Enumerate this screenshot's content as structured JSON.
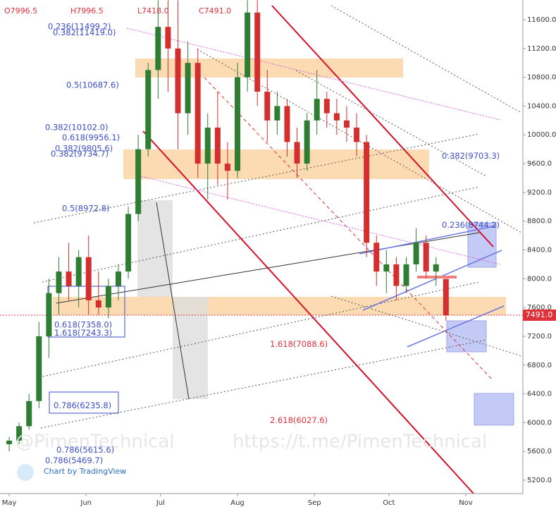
{
  "header": {
    "open": "O7996.5",
    "high": "H7996.5",
    "low": "L7418.0",
    "close": "C7491.0"
  },
  "last_price": "7491.0",
  "watermark_left": "@PimenTechnical",
  "watermark_right": "https://t.me/PimenTechnical",
  "branding": "Chart by TradingView",
  "chart_data": {
    "type": "candlestick",
    "x": [
      0,
      4,
      8,
      12,
      16,
      20,
      24,
      28,
      32,
      36,
      40,
      44,
      48,
      52,
      56,
      60,
      64,
      68,
      72,
      76,
      80,
      84,
      88,
      92,
      96,
      100,
      104,
      108,
      112,
      116,
      120,
      124,
      128,
      132,
      136,
      140,
      144,
      148,
      152,
      156,
      160,
      164,
      168,
      172,
      176
    ],
    "open": [
      5700,
      5750,
      5950,
      6300,
      7200,
      7800,
      8100,
      7900,
      8300,
      7700,
      7600,
      7900,
      8100,
      8900,
      9800,
      10900,
      11500,
      11200,
      10300,
      11000,
      9600,
      10100,
      9600,
      9500,
      10800,
      11700,
      10600,
      10200,
      10400,
      9900,
      9600,
      10200,
      10500,
      10300,
      10200,
      10100,
      9900,
      8500,
      8100,
      8200,
      7900,
      8200,
      8500,
      8100,
      7996.5
    ],
    "high": [
      5800,
      6000,
      6400,
      7400,
      8000,
      8300,
      8500,
      8400,
      8600,
      8100,
      8000,
      8200,
      9000,
      10000,
      11000,
      11870,
      11870,
      11870,
      11300,
      11200,
      10300,
      10600,
      9900,
      11000,
      11870,
      11870,
      10900,
      10600,
      10500,
      10100,
      10300,
      10900,
      10600,
      10500,
      10400,
      10300,
      10000,
      8600,
      8400,
      8300,
      8300,
      8700,
      8600,
      8300,
      7996.5
    ],
    "low": [
      5600,
      5700,
      5900,
      6200,
      6900,
      7500,
      7700,
      7600,
      7500,
      7500,
      7450,
      7700,
      8000,
      8800,
      9700,
      10500,
      10600,
      9800,
      10000,
      9400,
      9100,
      9300,
      9100,
      9400,
      10600,
      10400,
      9900,
      10000,
      9700,
      9400,
      9500,
      10000,
      10100,
      10000,
      9900,
      9700,
      8300,
      7900,
      7800,
      7700,
      7800,
      8100,
      8000,
      7900,
      7418
    ],
    "close": [
      5750,
      5950,
      6300,
      7200,
      7800,
      8100,
      7900,
      8300,
      7700,
      7600,
      7900,
      8100,
      8900,
      9800,
      10900,
      11500,
      11200,
      10300,
      11000,
      9600,
      10100,
      9600,
      9500,
      10800,
      11700,
      10600,
      10200,
      10400,
      9900,
      9600,
      10200,
      10500,
      10300,
      10200,
      10100,
      9900,
      8500,
      8100,
      8200,
      7900,
      8200,
      8500,
      8100,
      8200,
      7491
    ],
    "up_color": "#2e7d32",
    "down_color": "#d32f2f",
    "xlim": [
      -2,
      207
    ],
    "xticks": [
      {
        "value": 0,
        "label": "May"
      },
      {
        "value": 31,
        "label": "Jun"
      },
      {
        "value": 61,
        "label": "Jul"
      },
      {
        "value": 92,
        "label": "Aug"
      },
      {
        "value": 123,
        "label": "Sep"
      },
      {
        "value": 153,
        "label": "Oct"
      },
      {
        "value": 184,
        "label": "Nov"
      }
    ],
    "ylim": [
      5014,
      11874
    ],
    "yticks": [
      {
        "value": 5200,
        "label": "5200.0"
      },
      {
        "value": 5600,
        "label": "5600.0"
      },
      {
        "value": 6000,
        "label": "6000.0"
      },
      {
        "value": 6400,
        "label": "6400.0"
      },
      {
        "value": 6800,
        "label": "6800.0"
      },
      {
        "value": 7200,
        "label": "7200.0"
      },
      {
        "value": 7600,
        "label": "7600.0"
      },
      {
        "value": 8000,
        "label": "8000.0"
      },
      {
        "value": 8400,
        "label": "8400.0"
      },
      {
        "value": 8800,
        "label": "8800.0"
      },
      {
        "value": 9200,
        "label": "9200.0"
      },
      {
        "value": 9600,
        "label": "9600.0"
      },
      {
        "value": 10000,
        "label": "10000.0"
      },
      {
        "value": 10400,
        "label": "10400.0"
      },
      {
        "value": 10800,
        "label": "10800.0"
      },
      {
        "value": 11200,
        "label": "11200.0"
      },
      {
        "value": 11600,
        "label": "11600.0"
      }
    ],
    "annotations": [
      {
        "label": "0.236(11499.2)",
        "value": 11499.2
      },
      {
        "label": "0.382(11419.0)",
        "value": 11419.0
      },
      {
        "label": "0.5(10687.6)",
        "value": 10687.6
      },
      {
        "label": "0.382(10102.0)",
        "value": 10102.0
      },
      {
        "label": "0.618(9956.1)",
        "value": 9956.1
      },
      {
        "label": "0.382(9805.6)",
        "value": 9805.6
      },
      {
        "label": "0.382(9734.7)",
        "value": 9734.7
      },
      {
        "label": "0.382(9703.3)",
        "value": 9703.3
      },
      {
        "label": "0.5(8972.8)",
        "value": 8972.8
      },
      {
        "label": "0.236(8744.2)",
        "value": 8744.2
      },
      {
        "label": "0.618(7358.0)",
        "value": 7358.0
      },
      {
        "label": "1.618(7243.3)",
        "value": 7243.3
      },
      {
        "label": "1.618(7088.6)",
        "value": 7088.6
      },
      {
        "label": "0.786(6235.8)",
        "value": 6235.8
      },
      {
        "label": "2.618(6027.6)",
        "value": 6027.6
      },
      {
        "label": "0.786(5615.6)",
        "value": 5615.6
      },
      {
        "label": "0.786(5469.7)",
        "value": 5469.7
      }
    ]
  }
}
